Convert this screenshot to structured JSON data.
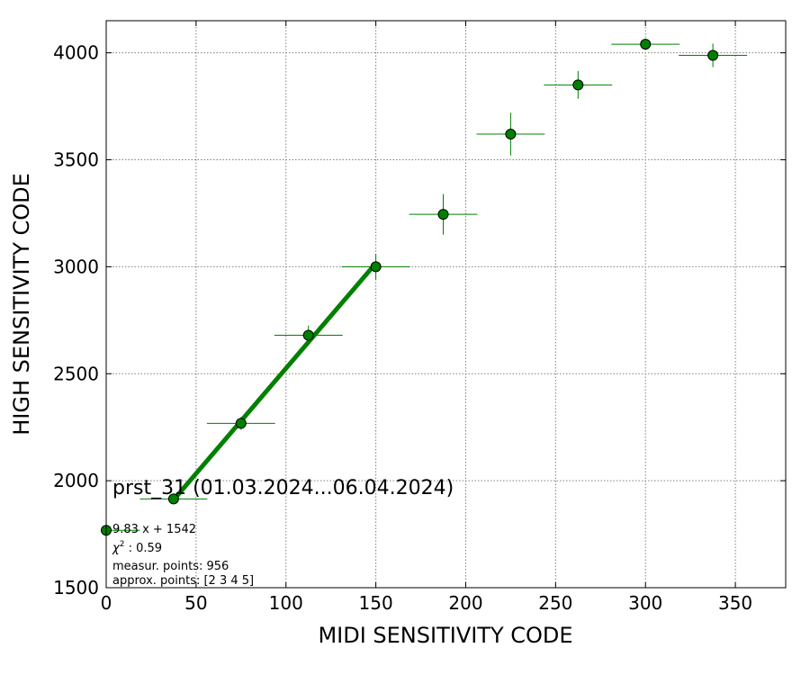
{
  "chart_data": {
    "type": "scatter",
    "xlabel": "MIDI SENSITIVITY CODE",
    "ylabel": "HIGH SENSITIVITY CODE",
    "xlim": [
      0,
      378
    ],
    "ylim": [
      1500,
      4150
    ],
    "x_ticks": [
      "0",
      "50",
      "100",
      "150",
      "200",
      "250",
      "300",
      "350"
    ],
    "y_ticks": [
      "1500",
      "2000",
      "2500",
      "3000",
      "3500",
      "4000"
    ],
    "grid": true,
    "colors": {
      "marker": "#008000",
      "errorbar": "#008000",
      "fit_line": "#008000"
    },
    "points": [
      {
        "x": 0,
        "y": 1768,
        "xerr": 18.75,
        "yerr": 0
      },
      {
        "x": 37.5,
        "y": 1915,
        "xerr": 18.75,
        "yerr": 15
      },
      {
        "x": 75,
        "y": 2268,
        "xerr": 19,
        "yerr": 30
      },
      {
        "x": 112.5,
        "y": 2680,
        "xerr": 19,
        "yerr": 45
      },
      {
        "x": 150,
        "y": 3000,
        "xerr": 19,
        "yerr": 60
      },
      {
        "x": 187.5,
        "y": 3245,
        "xerr": 19,
        "yerr": 95
      },
      {
        "x": 225,
        "y": 3620,
        "xerr": 19,
        "yerr": 100
      },
      {
        "x": 262.5,
        "y": 3850,
        "xerr": 19,
        "yerr": 65
      },
      {
        "x": 300,
        "y": 4040,
        "xerr": 19,
        "yerr": 25
      },
      {
        "x": 337.5,
        "y": 3988,
        "xerr": 19,
        "yerr": 55
      }
    ],
    "fit_line": {
      "slope": 9.83,
      "intercept": 1542,
      "x_range": [
        37.5,
        150
      ]
    },
    "annotations": {
      "title": "prst_31 (01.03.2024...06.04.2024)",
      "fit": "9.83 x + 1542",
      "chi2_label": "χ",
      "chi2_power": "2",
      "chi2_value": " : 0.59",
      "measur": "measur. points: 956",
      "approx": "approx. points: [2 3 4 5]"
    }
  }
}
